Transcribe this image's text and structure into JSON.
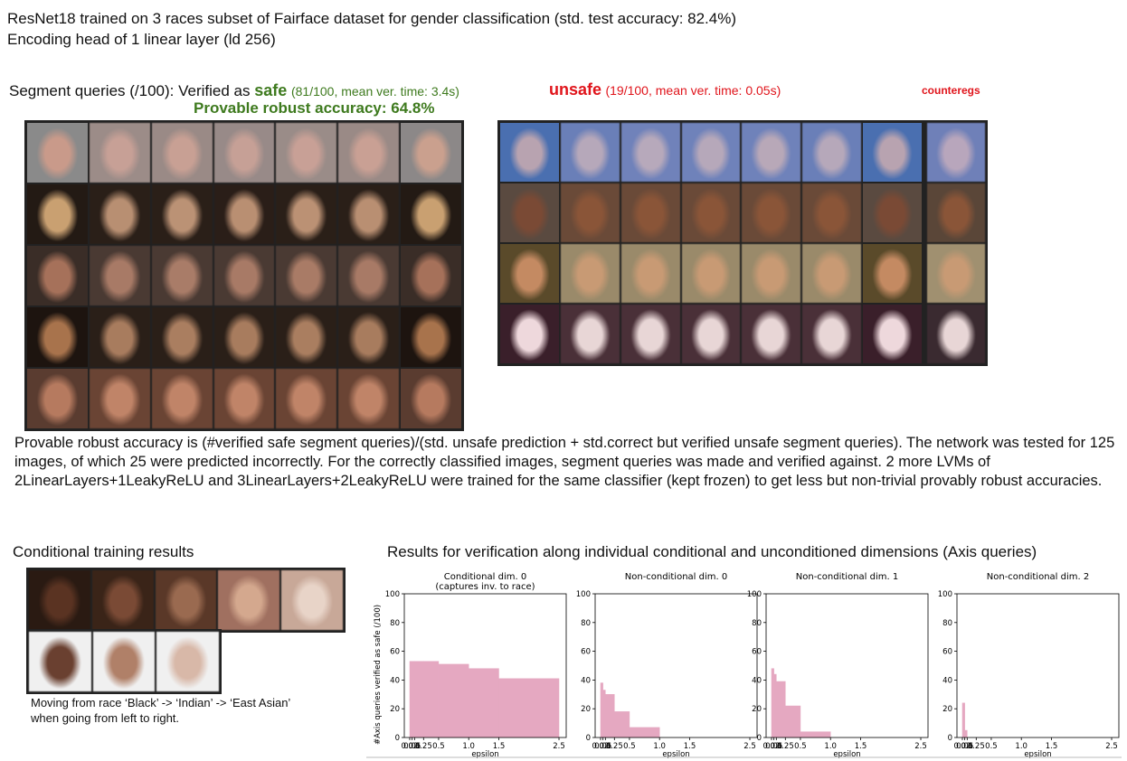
{
  "header": {
    "line1": "ResNet18 trained on 3 races subset of Fairface dataset for gender classification (std. test accuracy: 82.4%)",
    "line2": "Encoding head of 1 linear layer (ld 256)"
  },
  "segment": {
    "prefix": "Segment queries (/100): Verified as ",
    "safe_word": "safe",
    "safe_stats": "(81/100, mean ver. time: 3.4s)",
    "unsafe_word": "unsafe",
    "unsafe_stats": "(19/100, mean ver. time: 0.05s)",
    "counter_label": "counteregs",
    "robust_accuracy": "Provable robust accuracy: 64.8%"
  },
  "description": "Provable robust accuracy is (#verified safe segment queries)/(std. unsafe prediction + std.correct but verified unsafe segment queries). The network was tested for 125 images, of which 25 were predicted incorrectly. For the correctly classified images, segment queries was made and verified against. 2 more LVMs of 2LinearLayers+1LeakyReLU and 3LinearLayers+2LeakyReLU were trained for the same classifier (kept frozen) to get less but non-trivial provably robust accuracies.",
  "conditional": {
    "title": "Conditional training results",
    "caption_line1": "Moving from race ‘Black’ -> ‘Indian’ -> ‘East Asian’",
    "caption_line2": "when going from left to right."
  },
  "axis_results_title": "Results for verification along individual conditional and unconditioned dimensions (Axis queries)",
  "colors": {
    "safe_green": "#3e7a1e",
    "unsafe_red": "#e0141b",
    "bar_pink": "#e5a8c1"
  },
  "chart_data": [
    {
      "type": "bar",
      "title": "Conditional dim. 0",
      "subtitle": "(captures inv. to race)",
      "xlabel": "epsilon",
      "ylabel": "#Axis queries verified as safe (/100)",
      "ylim": [
        0,
        100
      ],
      "yticks": [
        0,
        20,
        40,
        60,
        80,
        100
      ],
      "xtick_labels": [
        "0.02",
        "0.06",
        "0.1",
        "0.25",
        "0.5",
        "1.0",
        "1.5",
        "2.5"
      ],
      "x": [
        0.02,
        0.06,
        0.1,
        0.25,
        0.5,
        1.0,
        1.5,
        2.5
      ],
      "values": [
        53,
        53,
        53,
        53,
        51,
        48,
        41,
        41
      ]
    },
    {
      "type": "bar",
      "title": "Non-conditional dim. 0",
      "xlabel": "epsilon",
      "ylim": [
        0,
        100
      ],
      "yticks": [
        0,
        20,
        40,
        60,
        80,
        100
      ],
      "xtick_labels": [
        "0.02",
        "0.06",
        "0.1",
        "0.25",
        "0.5",
        "1.0",
        "1.5",
        "2.5"
      ],
      "x": [
        0.02,
        0.06,
        0.1,
        0.25,
        0.5,
        1.0,
        1.5,
        2.5
      ],
      "values": [
        38,
        33,
        30,
        18,
        7,
        0,
        0,
        0
      ]
    },
    {
      "type": "bar",
      "title": "Non-conditional dim. 1",
      "xlabel": "epsilon",
      "ylim": [
        0,
        100
      ],
      "yticks": [
        0,
        20,
        40,
        60,
        80,
        100
      ],
      "xtick_labels": [
        "0.02",
        "0.06",
        "0.1",
        "0.25",
        "0.5",
        "1.0",
        "1.5",
        "2.5"
      ],
      "x": [
        0.02,
        0.06,
        0.1,
        0.25,
        0.5,
        1.0,
        1.5,
        2.5
      ],
      "values": [
        48,
        44,
        39,
        22,
        4,
        0,
        0,
        0
      ]
    },
    {
      "type": "bar",
      "title": "Non-conditional dim. 2",
      "xlabel": "epsilon",
      "ylim": [
        0,
        100
      ],
      "yticks": [
        0,
        20,
        40,
        60,
        80,
        100
      ],
      "xtick_labels": [
        "0.02",
        "0.06",
        "0.1",
        "0.25",
        "0.5",
        "1.0",
        "1.5",
        "2.5"
      ],
      "x": [
        0.02,
        0.06,
        0.1,
        0.25,
        0.5,
        1.0,
        1.5,
        2.5
      ],
      "values": [
        24,
        5,
        0,
        0,
        0,
        0,
        0,
        0
      ]
    }
  ]
}
